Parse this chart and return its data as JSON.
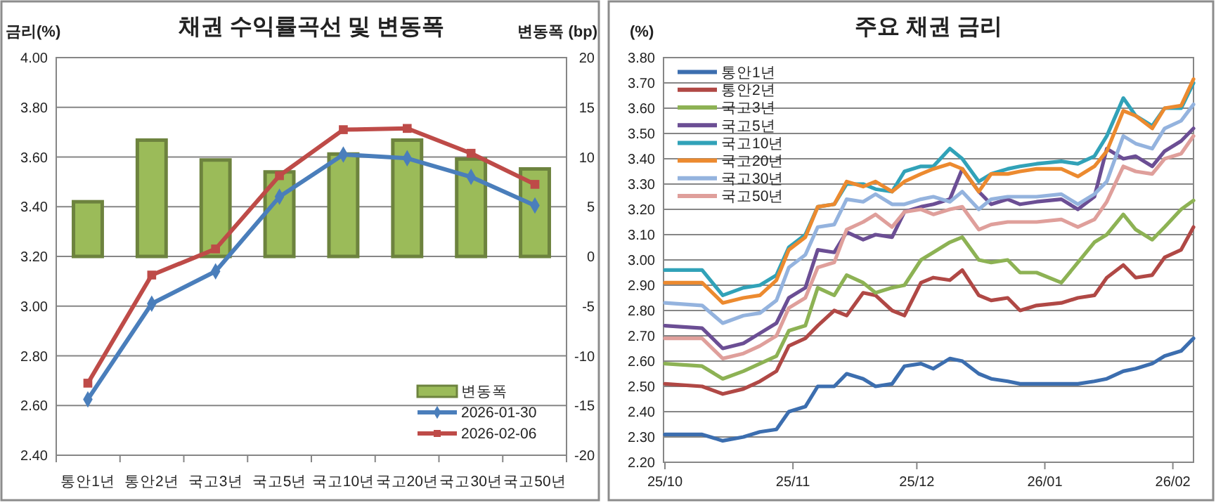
{
  "chart_data": [
    {
      "type": "line",
      "title": "채권 수익률곡선 및 변동폭",
      "ylabel": "금리(%)",
      "y2label": "변동폭 (bp)",
      "categories": [
        "통안1년",
        "통안2년",
        "국고3년",
        "국고5년",
        "국고10년",
        "국고20년",
        "국고30년",
        "국고50년"
      ],
      "ylim": [
        2.4,
        4.0
      ],
      "yticks": [
        {
          "value": 2.4,
          "label": "2.40"
        },
        {
          "value": 2.6,
          "label": "2.60"
        },
        {
          "value": 2.8,
          "label": "2.80"
        },
        {
          "value": 3.0,
          "label": "3.00"
        },
        {
          "value": 3.2,
          "label": "3.20"
        },
        {
          "value": 3.4,
          "label": "3.40"
        },
        {
          "value": 3.6,
          "label": "3.60"
        },
        {
          "value": 3.8,
          "label": "3.80"
        },
        {
          "value": 4.0,
          "label": "4.00"
        }
      ],
      "y2lim": [
        -20,
        20
      ],
      "y2ticks": [
        -20,
        -15,
        -10,
        -5,
        0,
        5,
        10,
        15,
        20
      ],
      "grid": "y",
      "legend": "bottom right",
      "series": [
        {
          "name": "변동폭",
          "type": "bar",
          "axis": "y2",
          "color": "#9bbb59",
          "values": [
            5.5,
            11.7,
            9.7,
            8.5,
            10.3,
            11.7,
            9.8,
            8.8
          ]
        },
        {
          "name": "2026-01-30",
          "marker": "diamond",
          "color": "#4a7ebb",
          "values": [
            2.625,
            3.01,
            3.14,
            3.44,
            3.61,
            3.595,
            3.52,
            3.405
          ]
        },
        {
          "name": "2026-02-06",
          "marker": "square",
          "color": "#be4b48",
          "values": [
            2.69,
            3.125,
            3.23,
            3.525,
            3.71,
            3.715,
            3.615,
            3.49
          ]
        }
      ]
    },
    {
      "type": "line",
      "title": "주요 채권 금리",
      "ylabel": "(%)",
      "xlim": [
        "2025-10-01",
        "2026-02-06"
      ],
      "xticks": [
        {
          "value": "2025-10-01",
          "label": "25/10"
        },
        {
          "value": "2025-11-01",
          "label": "25/11"
        },
        {
          "value": "2025-12-01",
          "label": "25/12"
        },
        {
          "value": "2026-01-01",
          "label": "26/01"
        },
        {
          "value": "2026-02-01",
          "label": "26/02"
        }
      ],
      "ylim": [
        2.2,
        3.8
      ],
      "yticks": [
        {
          "value": 2.2,
          "label": "2.20"
        },
        {
          "value": 2.3,
          "label": "2.30"
        },
        {
          "value": 2.4,
          "label": "2.40"
        },
        {
          "value": 2.5,
          "label": "2.50"
        },
        {
          "value": 2.6,
          "label": "2.60"
        },
        {
          "value": 2.7,
          "label": "2.70"
        },
        {
          "value": 2.8,
          "label": "2.80"
        },
        {
          "value": 2.9,
          "label": "2.90"
        },
        {
          "value": 3.0,
          "label": "3.00"
        },
        {
          "value": 3.1,
          "label": "3.10"
        },
        {
          "value": 3.2,
          "label": "3.20"
        },
        {
          "value": 3.3,
          "label": "3.30"
        },
        {
          "value": 3.4,
          "label": "3.40"
        },
        {
          "value": 3.5,
          "label": "3.50"
        },
        {
          "value": 3.6,
          "label": "3.60"
        },
        {
          "value": 3.7,
          "label": "3.70"
        },
        {
          "value": 3.8,
          "label": "3.80"
        }
      ],
      "grid": "y",
      "legend": "top left",
      "x": [
        "2025-10-01",
        "2025-10-10",
        "2025-10-15",
        "2025-10-20",
        "2025-10-24",
        "2025-10-28",
        "2025-10-31",
        "2025-11-04",
        "2025-11-07",
        "2025-11-11",
        "2025-11-14",
        "2025-11-18",
        "2025-11-21",
        "2025-11-25",
        "2025-11-28",
        "2025-12-02",
        "2025-12-05",
        "2025-12-09",
        "2025-12-12",
        "2025-12-16",
        "2025-12-19",
        "2025-12-23",
        "2025-12-26",
        "2025-12-30",
        "2026-01-05",
        "2026-01-09",
        "2026-01-13",
        "2026-01-16",
        "2026-01-20",
        "2026-01-23",
        "2026-01-27",
        "2026-01-30",
        "2026-02-03",
        "2026-02-06"
      ],
      "series": [
        {
          "name": "통안1년",
          "color": "#3c6eaf",
          "values": [
            2.31,
            2.31,
            2.285,
            2.3,
            2.32,
            2.33,
            2.4,
            2.42,
            2.5,
            2.5,
            2.55,
            2.53,
            2.5,
            2.51,
            2.58,
            2.59,
            2.57,
            2.61,
            2.6,
            2.55,
            2.53,
            2.52,
            2.51,
            2.51,
            2.51,
            2.51,
            2.52,
            2.53,
            2.56,
            2.57,
            2.59,
            2.62,
            2.64,
            2.69
          ]
        },
        {
          "name": "통안2년",
          "color": "#b04845",
          "values": [
            2.51,
            2.5,
            2.47,
            2.49,
            2.52,
            2.56,
            2.66,
            2.69,
            2.74,
            2.8,
            2.78,
            2.87,
            2.86,
            2.8,
            2.78,
            2.91,
            2.93,
            2.92,
            2.96,
            2.86,
            2.84,
            2.85,
            2.8,
            2.82,
            2.83,
            2.85,
            2.86,
            2.93,
            2.98,
            2.93,
            2.94,
            3.01,
            3.04,
            3.13
          ]
        },
        {
          "name": "국고3년",
          "color": "#8db254",
          "values": [
            2.59,
            2.58,
            2.53,
            2.56,
            2.59,
            2.62,
            2.72,
            2.74,
            2.89,
            2.86,
            2.94,
            2.91,
            2.87,
            2.89,
            2.9,
            3.0,
            3.03,
            3.07,
            3.09,
            3.0,
            2.99,
            3.0,
            2.95,
            2.95,
            2.91,
            2.99,
            3.07,
            3.1,
            3.18,
            3.12,
            3.08,
            3.13,
            3.2,
            3.235
          ]
        },
        {
          "name": "국고5년",
          "color": "#6b4e94",
          "values": [
            2.74,
            2.73,
            2.65,
            2.67,
            2.71,
            2.75,
            2.85,
            2.89,
            3.04,
            3.03,
            3.11,
            3.08,
            3.1,
            3.09,
            3.19,
            3.21,
            3.22,
            3.24,
            3.36,
            3.27,
            3.22,
            3.24,
            3.22,
            3.23,
            3.24,
            3.2,
            3.25,
            3.44,
            3.4,
            3.41,
            3.37,
            3.43,
            3.47,
            3.52
          ]
        },
        {
          "name": "국고10년",
          "color": "#31a2b8",
          "values": [
            2.96,
            2.96,
            2.86,
            2.89,
            2.9,
            2.94,
            3.05,
            3.1,
            3.21,
            3.22,
            3.3,
            3.3,
            3.28,
            3.27,
            3.35,
            3.37,
            3.37,
            3.44,
            3.4,
            3.31,
            3.34,
            3.36,
            3.37,
            3.38,
            3.39,
            3.38,
            3.41,
            3.49,
            3.64,
            3.57,
            3.53,
            3.6,
            3.6,
            3.7
          ]
        },
        {
          "name": "국고20년",
          "color": "#ec8a2f",
          "values": [
            2.91,
            2.91,
            2.83,
            2.85,
            2.86,
            2.92,
            3.04,
            3.09,
            3.21,
            3.22,
            3.31,
            3.29,
            3.31,
            3.27,
            3.31,
            3.34,
            3.36,
            3.38,
            3.36,
            3.27,
            3.34,
            3.34,
            3.35,
            3.36,
            3.36,
            3.33,
            3.37,
            3.43,
            3.59,
            3.57,
            3.52,
            3.6,
            3.61,
            3.715
          ]
        },
        {
          "name": "국고30년",
          "color": "#94b3de",
          "values": [
            2.83,
            2.82,
            2.75,
            2.78,
            2.79,
            2.84,
            2.97,
            3.02,
            3.13,
            3.14,
            3.24,
            3.23,
            3.26,
            3.22,
            3.22,
            3.24,
            3.25,
            3.23,
            3.27,
            3.2,
            3.24,
            3.25,
            3.25,
            3.25,
            3.26,
            3.22,
            3.26,
            3.31,
            3.49,
            3.46,
            3.44,
            3.52,
            3.55,
            3.615
          ]
        },
        {
          "name": "국고50년",
          "color": "#df9f9b",
          "values": [
            2.69,
            2.69,
            2.61,
            2.63,
            2.66,
            2.7,
            2.81,
            2.85,
            2.97,
            2.99,
            3.12,
            3.15,
            3.18,
            3.13,
            3.19,
            3.2,
            3.18,
            3.2,
            3.21,
            3.12,
            3.14,
            3.15,
            3.15,
            3.15,
            3.16,
            3.13,
            3.16,
            3.23,
            3.37,
            3.35,
            3.34,
            3.4,
            3.42,
            3.49
          ]
        }
      ]
    }
  ]
}
